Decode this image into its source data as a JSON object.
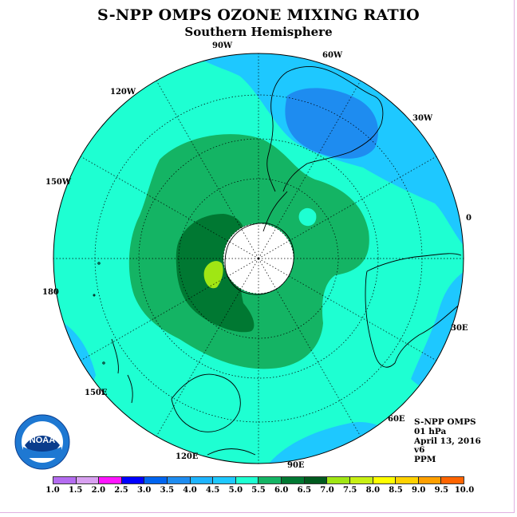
{
  "title": "S-NPP OMPS OZONE MIXING RATIO",
  "subtitle": "Southern Hemisphere",
  "longitude_labels": {
    "lon_90w": "90W",
    "lon_60w": "60W",
    "lon_30w": "30W",
    "lon_0": "0",
    "lon_30e": "30E",
    "lon_60e": "60E",
    "lon_90e": "90E",
    "lon_120e": "120E",
    "lon_150e": "150E",
    "lon_180": "180",
    "lon_150w": "150W",
    "lon_120w": "120W"
  },
  "info": {
    "instrument": "S-NPP OMPS",
    "level": "01 hPa",
    "date": "April 13, 2016",
    "version": "v6",
    "units": "PPM"
  },
  "logo": {
    "text": "NOAA",
    "ring_text": "NATIONAL OCEANIC AND ATMOSPHERIC ADMINISTRATION · U.S. DEPARTMENT OF COMMERCE"
  },
  "colorbar": {
    "colors": [
      "#b46cf0",
      "#d8a0f0",
      "#ff00ff",
      "#a000f0",
      "#0000ff",
      "#0064ff",
      "#1e90ff",
      "#00b4ff",
      "#00e6ff",
      "#00c878",
      "#008c3c",
      "#006414",
      "#8cd200",
      "#c8e600",
      "#ffff00",
      "#ffd200",
      "#ffaa00",
      "#ff6e00",
      "#ff0000",
      "#c80000",
      "#8b5a3c"
    ],
    "labels": [
      "1.0",
      "1.5",
      "2.0",
      "2.5",
      "3.0",
      "3.5",
      "4.0",
      "4.5",
      "5.0",
      "5.5",
      "6.0",
      "6.5",
      "7.0",
      "7.5",
      "8.0",
      "8.5",
      "9.0",
      "9.5",
      "10.0"
    ]
  },
  "map_colors": {
    "level_4_0": "#1ec8ff",
    "level_3_5": "#1e8cf0",
    "level_4_5": "#1effd2",
    "level_5_0": "#14b464",
    "level_5_5": "#007832",
    "level_6_0": "#005a1e",
    "level_6_5": "#a0e614",
    "polar_night": "#ffffff"
  }
}
